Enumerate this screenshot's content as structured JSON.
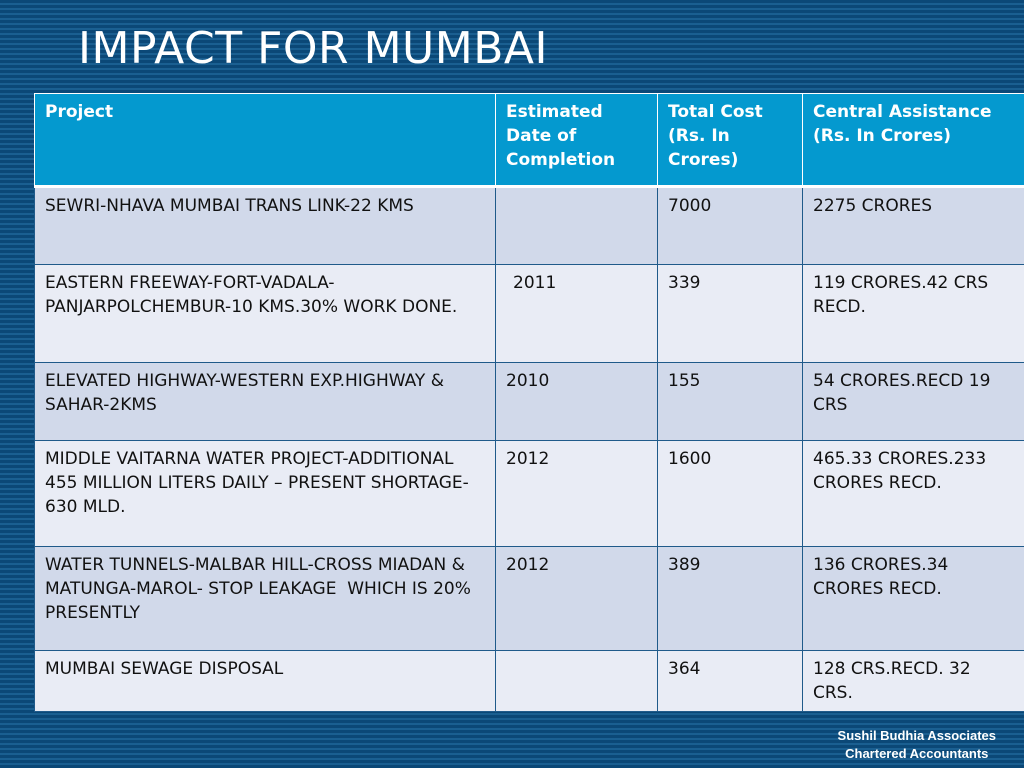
{
  "slide": {
    "title": "IMPACT FOR MUMBAI"
  },
  "table": {
    "headers": {
      "project": "Project",
      "date": "Estimated Date of Completion",
      "cost": "Total Cost (Rs. In Crores)",
      "assistance_line1": "Central Assistance",
      "assistance_line2": "(Rs. In Crores)"
    },
    "rows": [
      {
        "project": "SEWRI-NHAVA MUMBAI TRANS LINK-22 KMS",
        "date": "",
        "cost": "7000",
        "assistance": "2275 CRORES"
      },
      {
        "project": "EASTERN FREEWAY-FORT-VADALA-PANJARPOLCHEMBUR-10 KMS.30% WORK DONE.",
        "date": "2011",
        "cost": "339",
        "assistance": "119 CRORES.42 CRS RECD."
      },
      {
        "project": "ELEVATED HIGHWAY-WESTERN EXP.HIGHWAY & SAHAR-2KMS",
        "date": "2010",
        "cost": "155",
        "assistance": "54 CRORES.RECD 19 CRS"
      },
      {
        "project": "MIDDLE VAITARNA WATER PROJECT-ADDITIONAL 455 MILLION LITERS DAILY – PRESENT SHORTAGE- 630 MLD.",
        "date": "2012",
        "cost": "1600",
        "assistance": "465.33 CRORES.233 CRORES RECD."
      },
      {
        "project": "WATER TUNNELS-MALBAR HILL-CROSS MIADAN & MATUNGA-MAROL- STOP LEAKAGE  WHICH IS 20% PRESENTLY",
        "date": "2012",
        "cost": "389",
        "assistance": "136 CRORES.34 CRORES RECD."
      },
      {
        "project": "MUMBAI SEWAGE DISPOSAL",
        "date": "",
        "cost": "364",
        "assistance": "128 CRS.RECD. 32 CRS."
      }
    ]
  },
  "footer": {
    "line1": "Sushil Budhia Associates",
    "line2": "Chartered Accountants"
  }
}
